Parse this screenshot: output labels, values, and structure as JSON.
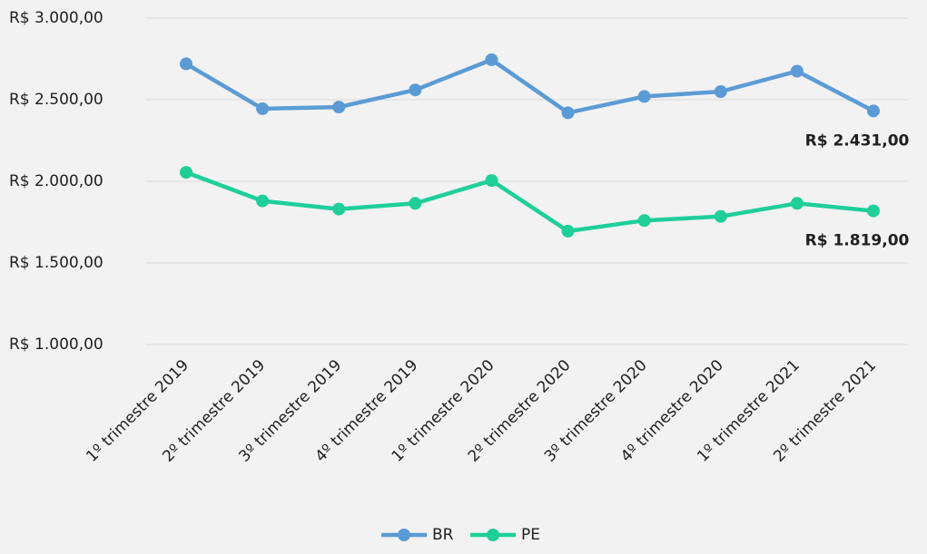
{
  "chart_data": {
    "type": "line",
    "categories": [
      "1º trimestre 2019",
      "2º trimestre 2019",
      "3º trimestre 2019",
      "4º trimestre 2019",
      "1º trimestre 2020",
      "2º trimestre 2020",
      "3º trimestre 2020",
      "4º trimestre 2020",
      "1º trimestre 2021",
      "2º trimestre 2021"
    ],
    "series": [
      {
        "name": "BR",
        "color": "#5b9bd5",
        "values": [
          2720,
          2445,
          2455,
          2560,
          2745,
          2420,
          2520,
          2550,
          2675,
          2431
        ],
        "value_labels": [
          null,
          null,
          null,
          null,
          null,
          null,
          null,
          null,
          null,
          "R$ 2.431,00"
        ]
      },
      {
        "name": "PE",
        "color": "#1ecf98",
        "values": [
          2055,
          1880,
          1830,
          1865,
          2005,
          1695,
          1760,
          1785,
          1865,
          1819
        ],
        "value_labels": [
          null,
          null,
          null,
          null,
          null,
          null,
          null,
          null,
          null,
          "R$ 1.819,00"
        ]
      }
    ],
    "ylim": [
      1000,
      3000
    ],
    "yticks": [
      {
        "value": 1000,
        "label": "R$ 1.000,00"
      },
      {
        "value": 1500,
        "label": "R$ 1.500,00"
      },
      {
        "value": 2000,
        "label": "R$ 2.000,00"
      },
      {
        "value": 2500,
        "label": "R$ 2.500,00"
      },
      {
        "value": 3000,
        "label": "R$ 3.000,00"
      }
    ],
    "grid": true,
    "legend": "bottom"
  }
}
